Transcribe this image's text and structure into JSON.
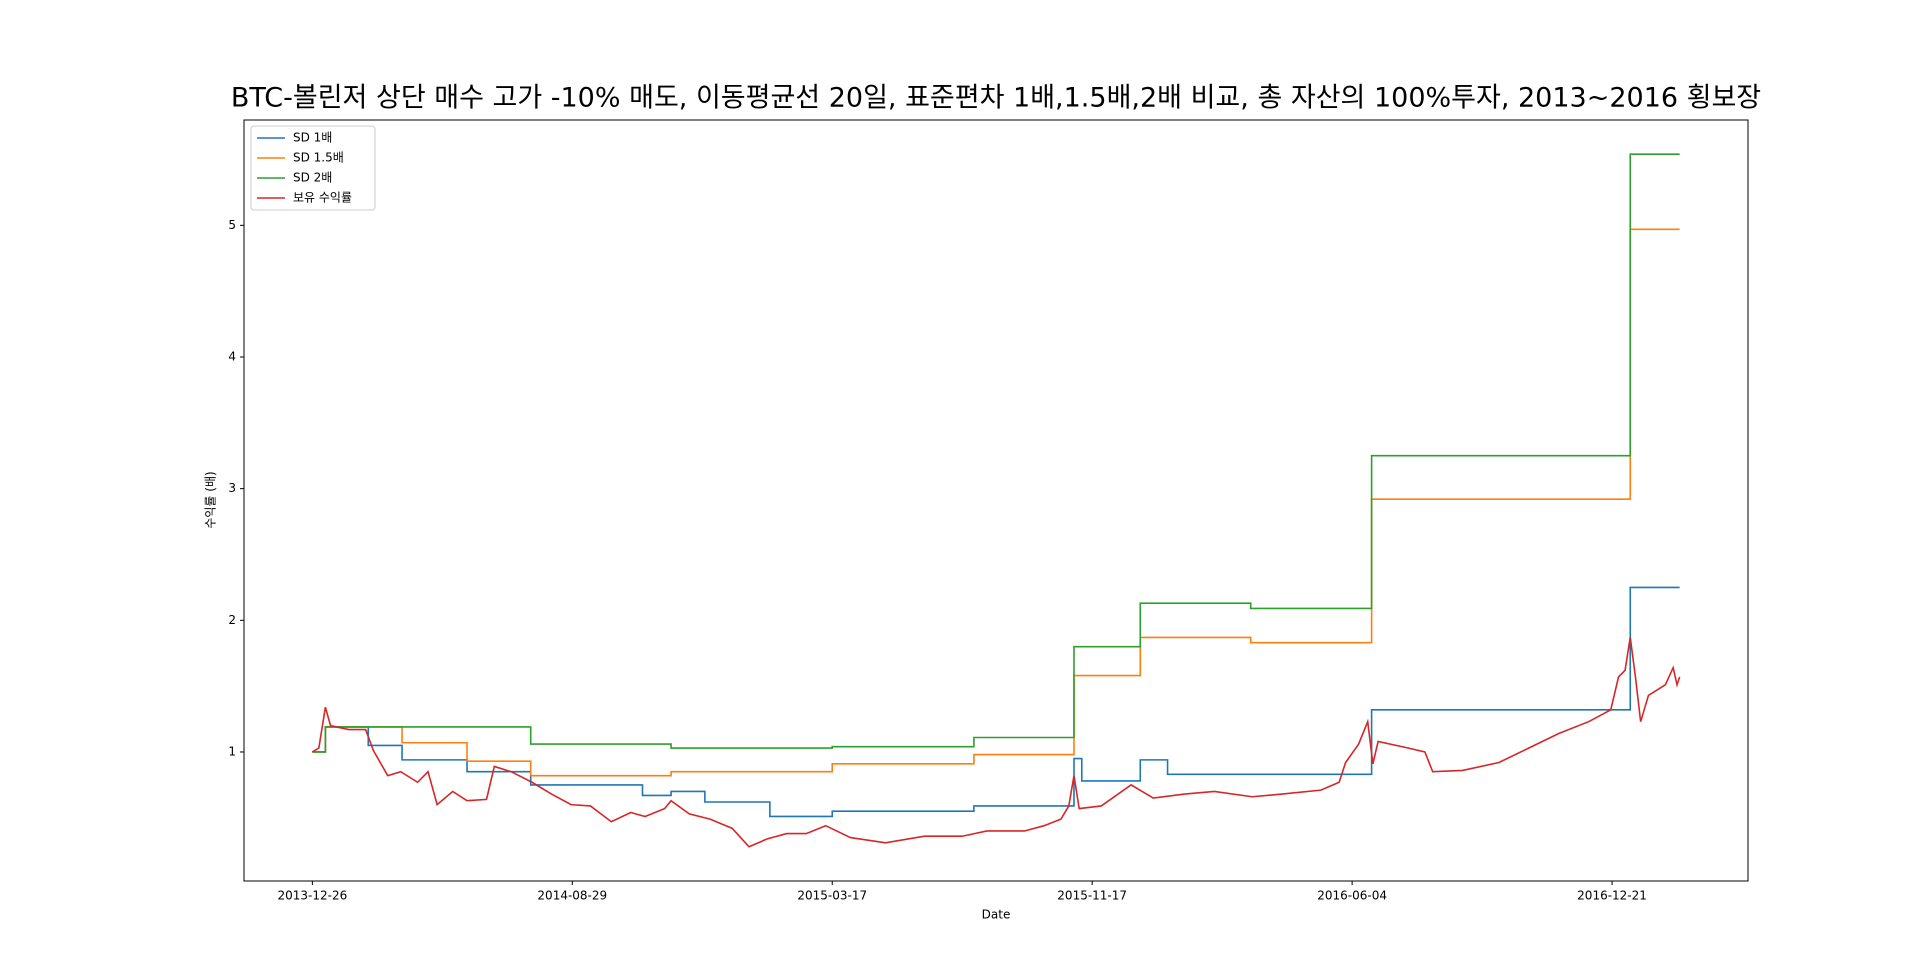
{
  "chart_data": {
    "type": "line",
    "title": "BTC-볼린저 상단 매수 고가 -10% 매도, 이동평균선 20일, 표준편차 1배,1.5배,2배 비교, 총 자산의 100%투자, 2013~2016 횡보장",
    "x_label": "Date",
    "y_label": "수익률 (배)",
    "drawstyle": "steps-post",
    "legend": "upper left",
    "xlim": [
      -52.6,
      1104.6
    ],
    "xticks": [
      {
        "value": 0,
        "label": "2013-12-26"
      },
      {
        "value": 200,
        "label": "2014-08-29"
      },
      {
        "value": 400,
        "label": "2015-03-17"
      },
      {
        "value": 600,
        "label": "2015-11-17"
      },
      {
        "value": 800,
        "label": "2016-06-04"
      },
      {
        "value": 1000,
        "label": "2016-12-21"
      }
    ],
    "ylim": [
      0.02,
      5.8
    ],
    "yticks": [
      1,
      2,
      3,
      4,
      5
    ],
    "series": [
      {
        "name": "SD 1배",
        "color": "#1f77b4",
        "step": true,
        "x": [
          0,
          10,
          43,
          69,
          119,
          168,
          254,
          276,
          302,
          352,
          400,
          509,
          586,
          592,
          637,
          658,
          815,
          1014,
          1052
        ],
        "values": [
          1.0,
          1.19,
          1.05,
          0.94,
          0.85,
          0.75,
          0.67,
          0.7,
          0.62,
          0.51,
          0.55,
          0.59,
          0.95,
          0.78,
          0.94,
          0.83,
          1.32,
          2.25,
          2.25
        ]
      },
      {
        "name": "SD 1.5배",
        "color": "#ff7f0e",
        "step": true,
        "x": [
          0,
          10,
          69,
          119,
          168,
          276,
          400,
          509,
          586,
          637,
          722,
          815,
          1014,
          1052
        ],
        "values": [
          1.0,
          1.19,
          1.07,
          0.93,
          0.82,
          0.85,
          0.91,
          0.98,
          1.58,
          1.87,
          1.83,
          2.92,
          4.97,
          4.97
        ]
      },
      {
        "name": "SD 2배",
        "color": "#2ca02c",
        "step": true,
        "x": [
          0,
          10,
          168,
          276,
          400,
          509,
          586,
          637,
          722,
          815,
          1014,
          1052
        ],
        "values": [
          1.0,
          1.19,
          1.06,
          1.03,
          1.04,
          1.11,
          1.8,
          2.13,
          2.09,
          3.25,
          5.54,
          5.54
        ]
      },
      {
        "name": "보유 수익률",
        "color": "#d62728",
        "step": false,
        "x": [
          0,
          5,
          10,
          14,
          28,
          41,
          47,
          58,
          68,
          81,
          89,
          96,
          108,
          119,
          134,
          140,
          153,
          169,
          184,
          199,
          214,
          230,
          245,
          256,
          271,
          276,
          290,
          306,
          323,
          336,
          350,
          365,
          380,
          395,
          414,
          441,
          471,
          500,
          519,
          548,
          563,
          576,
          582,
          586,
          590,
          607,
          630,
          647,
          671,
          694,
          723,
          746,
          776,
          790,
          795,
          805,
          812,
          816,
          820,
          843,
          856,
          862,
          885,
          913,
          936,
          959,
          982,
          999,
          1005,
          1010,
          1014,
          1018,
          1022,
          1028,
          1041,
          1047,
          1050,
          1052
        ],
        "values": [
          1.0,
          1.03,
          1.34,
          1.2,
          1.17,
          1.17,
          1.01,
          0.82,
          0.85,
          0.77,
          0.85,
          0.6,
          0.7,
          0.63,
          0.64,
          0.89,
          0.85,
          0.77,
          0.68,
          0.6,
          0.59,
          0.47,
          0.54,
          0.51,
          0.57,
          0.63,
          0.53,
          0.49,
          0.42,
          0.28,
          0.34,
          0.38,
          0.38,
          0.44,
          0.35,
          0.31,
          0.36,
          0.36,
          0.4,
          0.4,
          0.44,
          0.49,
          0.59,
          0.82,
          0.57,
          0.59,
          0.75,
          0.65,
          0.68,
          0.7,
          0.66,
          0.68,
          0.71,
          0.77,
          0.92,
          1.06,
          1.23,
          0.91,
          1.08,
          1.03,
          1.0,
          0.85,
          0.86,
          0.92,
          1.03,
          1.14,
          1.23,
          1.32,
          1.57,
          1.62,
          1.87,
          1.57,
          1.23,
          1.43,
          1.51,
          1.64,
          1.51,
          1.57
        ]
      }
    ]
  }
}
